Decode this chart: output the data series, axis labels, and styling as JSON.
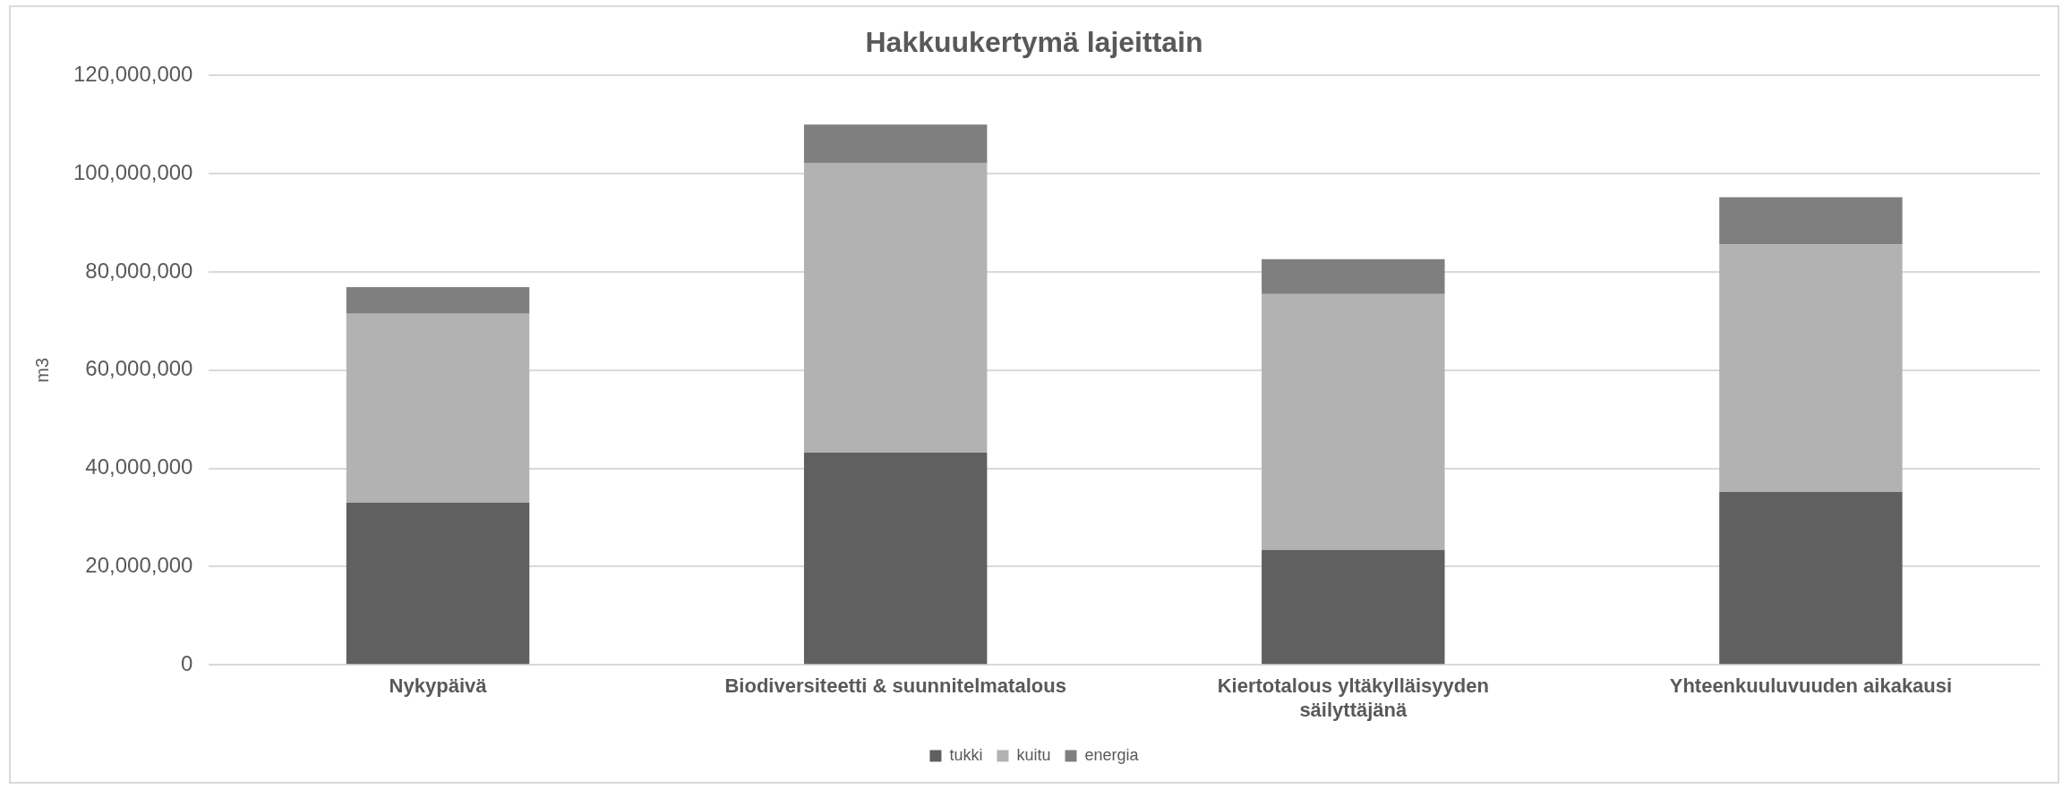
{
  "chart_data": {
    "type": "bar",
    "title": "Hakkuukertymä lajeittain",
    "ylabel": "m3",
    "stacked": true,
    "grid": "y",
    "legend": "bottom",
    "categories": [
      "Nykypäivä",
      "Biodiversiteetti & suunnitelmatalous",
      "Kiertotalous yltäkylläisyyden säilyttäjänä",
      "Yhteenkuuluvuuden aikakausi"
    ],
    "ylim": [
      0,
      120000000
    ],
    "yticks": [
      0,
      {
        "value": 20000000,
        "label": "20,000,000"
      },
      {
        "value": 40000000,
        "label": "40,000,000"
      },
      {
        "value": 60000000,
        "label": "60,000,000"
      },
      {
        "value": 80000000,
        "label": "80,000,000"
      },
      {
        "value": 100000000,
        "label": "100,000,000"
      },
      {
        "value": 120000000,
        "label": "120,000,000"
      }
    ],
    "series": [
      {
        "name": "tukki",
        "color": "#606060",
        "values": [
          33000000,
          43200000,
          23400000,
          35200000
        ]
      },
      {
        "name": "kuitu",
        "color": "#b2b2b2",
        "values": [
          38500000,
          59000000,
          52100000,
          50400000
        ]
      },
      {
        "name": "energia",
        "color": "#7f7f7f",
        "values": [
          5400000,
          7800000,
          7100000,
          9600000
        ]
      }
    ]
  }
}
